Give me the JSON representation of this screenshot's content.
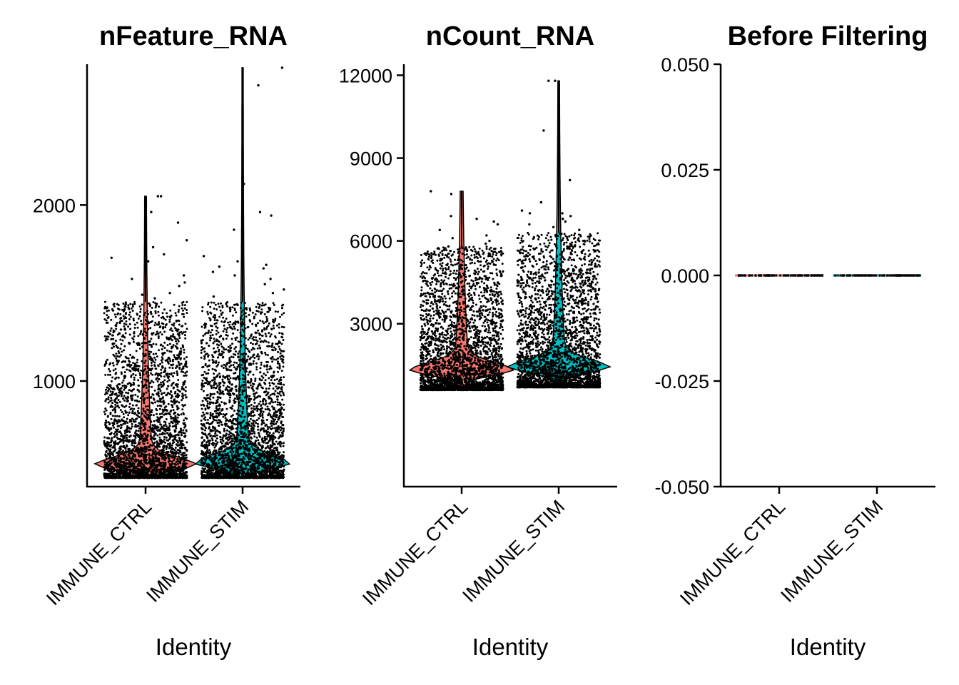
{
  "chart_data": [
    {
      "type": "violin",
      "title": "nFeature_RNA",
      "xlabel": "Identity",
      "ylabel": "",
      "categories": [
        "IMMUNE_CTRL",
        "IMMUNE_STIM"
      ],
      "fill_colors": [
        "#F8766D",
        "#00BFC4"
      ],
      "ylim": [
        400,
        2800
      ],
      "yticks": [
        1000,
        2000
      ],
      "ytick_labels": [
        "1000",
        "2000"
      ],
      "series": [
        {
          "name": "IMMUNE_CTRL",
          "min": 450,
          "median": 520,
          "q75": 700,
          "max": 2050,
          "jitter_max": 1450,
          "n_points": 3200,
          "outliers": [
            2050,
            2050,
            1960,
            1900,
            1800,
            1760,
            1720,
            1700,
            1680,
            1640,
            1600,
            1580,
            1560,
            1540,
            1500,
            1490,
            1470
          ]
        },
        {
          "name": "IMMUNE_STIM",
          "min": 450,
          "median": 530,
          "q75": 720,
          "max": 2780,
          "jitter_max": 1450,
          "n_points": 3200,
          "outliers": [
            2780,
            2680,
            2120,
            1940,
            1860,
            1960,
            1710,
            1680,
            1660,
            1650,
            1640,
            1620,
            1600,
            1580,
            1550,
            1520,
            1500,
            1480
          ]
        }
      ]
    },
    {
      "type": "violin",
      "title": "nCount_RNA",
      "xlabel": "Identity",
      "ylabel": "",
      "categories": [
        "IMMUNE_CTRL",
        "IMMUNE_STIM"
      ],
      "fill_colors": [
        "#F8766D",
        "#00BFC4"
      ],
      "ylim": [
        -2900,
        12400
      ],
      "yticks": [
        3000,
        6000,
        9000,
        12000
      ],
      "ytick_labels": [
        "3000",
        "6000",
        "9000",
        "12000"
      ],
      "series": [
        {
          "name": "IMMUNE_CTRL",
          "min": 600,
          "median": 1300,
          "q75": 2200,
          "max": 7800,
          "jitter_max": 5800,
          "n_points": 3200,
          "outliers": [
            7800,
            7700,
            6900,
            6800,
            6700,
            6600,
            6400,
            6200,
            6100,
            6000,
            5900,
            5800
          ]
        },
        {
          "name": "IMMUNE_STIM",
          "min": 700,
          "median": 1400,
          "q75": 2500,
          "max": 11800,
          "jitter_max": 6300,
          "n_points": 3200,
          "outliers": [
            11800,
            11800,
            10000,
            8200,
            7400,
            7100,
            7000,
            7000,
            6900,
            6800,
            6700,
            6600,
            6500,
            6400
          ]
        }
      ]
    },
    {
      "type": "violin",
      "title": "Before Filtering",
      "xlabel": "Identity",
      "ylabel": "",
      "categories": [
        "IMMUNE_CTRL",
        "IMMUNE_STIM"
      ],
      "fill_colors": [
        "#F8766D",
        "#00BFC4"
      ],
      "ylim": [
        -0.05,
        0.05
      ],
      "yticks": [
        -0.05,
        -0.025,
        0,
        0.025,
        0.05
      ],
      "ytick_labels": [
        "-0.050",
        "-0.025",
        "0.000",
        "0.025",
        "0.050"
      ],
      "series": [
        {
          "name": "IMMUNE_CTRL",
          "min": 0,
          "median": 0,
          "max": 0,
          "n_points": 3200
        },
        {
          "name": "IMMUNE_STIM",
          "min": 0,
          "median": 0,
          "max": 0,
          "n_points": 3200
        }
      ]
    }
  ]
}
